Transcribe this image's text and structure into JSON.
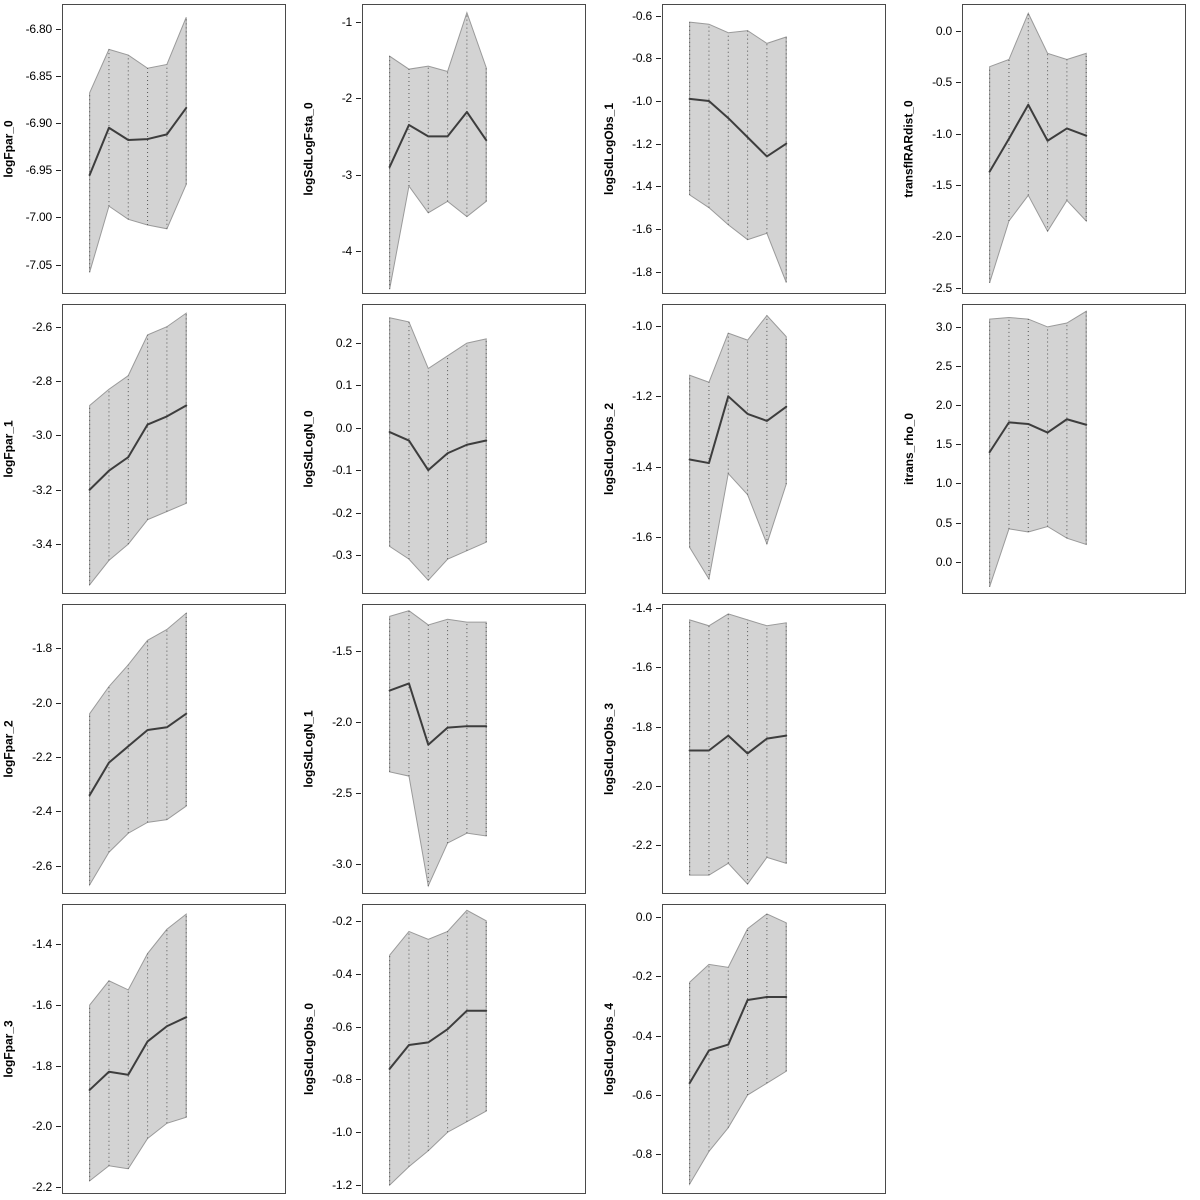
{
  "figure": {
    "background": "#ffffff",
    "panel_border_color": "#4a4a4a",
    "band_fill_color": "#d3d3d3",
    "band_edge_color": "#9a9a9a",
    "line_color": "#3d3d3d",
    "gridline_color": "#555555",
    "tick_text_color": "#000000"
  },
  "chart_data": {
    "type": "line",
    "subtype": "parameter-estimates-with-confidence-bands",
    "layout": {
      "columns": 4,
      "rows": 4,
      "empty_cells": [
        11,
        15
      ],
      "band_x_start_frac": 0.12,
      "band_x_end_frac": 0.555,
      "x_tick_labels_visible": false,
      "legend": "none",
      "grid": "dotted-vertical-ci-segments"
    },
    "x_index": [
      1,
      2,
      3,
      4,
      5,
      6
    ],
    "plots": [
      {
        "name": "logFpar_0",
        "ylim": [
          -7.08,
          -6.775
        ],
        "yticks": [
          "-6.80",
          "-6.85",
          "-6.90",
          "-6.95",
          "-7.00",
          "-7.05"
        ],
        "center": [
          -6.955,
          -6.905,
          -6.918,
          -6.917,
          -6.912,
          -6.884
        ],
        "upper": [
          -6.868,
          -6.822,
          -6.828,
          -6.842,
          -6.838,
          -6.788
        ],
        "lower": [
          -7.058,
          -6.988,
          -7.002,
          -7.008,
          -7.012,
          -6.965
        ]
      },
      {
        "name": "logSdLogFsta_0",
        "ylim": [
          -4.55,
          -0.78
        ],
        "yticks": [
          "-1",
          "-2",
          "-3",
          "-4"
        ],
        "center": [
          -2.9,
          -2.35,
          -2.5,
          -2.5,
          -2.18,
          -2.55
        ],
        "upper": [
          -1.45,
          -1.62,
          -1.58,
          -1.65,
          -0.88,
          -1.6
        ],
        "lower": [
          -4.5,
          -3.15,
          -3.5,
          -3.35,
          -3.55,
          -3.35
        ]
      },
      {
        "name": "logSdLogObs_1",
        "ylim": [
          -1.9,
          -0.55
        ],
        "yticks": [
          "-0.6",
          "-0.8",
          "-1.0",
          "-1.2",
          "-1.4",
          "-1.6",
          "-1.8"
        ],
        "center": [
          -0.99,
          -1.0,
          -1.08,
          -1.17,
          -1.26,
          -1.2
        ],
        "upper": [
          -0.63,
          -0.64,
          -0.68,
          -0.67,
          -0.73,
          -0.7
        ],
        "lower": [
          -1.44,
          -1.5,
          -1.58,
          -1.65,
          -1.62,
          -1.85
        ]
      },
      {
        "name": "transfIRARdist_0",
        "ylim": [
          -2.55,
          0.25
        ],
        "yticks": [
          "0.0",
          "-0.5",
          "-1.0",
          "-1.5",
          "-2.0",
          "-2.5"
        ],
        "center": [
          -1.37,
          -1.05,
          -0.72,
          -1.07,
          -0.95,
          -1.02
        ],
        "upper": [
          -0.35,
          -0.28,
          0.17,
          -0.22,
          -0.28,
          -0.22
        ],
        "lower": [
          -2.45,
          -1.85,
          -1.6,
          -1.95,
          -1.65,
          -1.85
        ]
      },
      {
        "name": "logFpar_1",
        "ylim": [
          -3.58,
          -2.52
        ],
        "yticks": [
          "-2.6",
          "-2.8",
          "-3.0",
          "-3.2",
          "-3.4"
        ],
        "center": [
          -3.2,
          -3.13,
          -3.08,
          -2.96,
          -2.93,
          -2.89
        ],
        "upper": [
          -2.89,
          -2.83,
          -2.78,
          -2.63,
          -2.6,
          -2.55
        ],
        "lower": [
          -3.55,
          -3.46,
          -3.4,
          -3.31,
          -3.28,
          -3.25
        ]
      },
      {
        "name": "logSdLogN_0",
        "ylim": [
          -0.39,
          0.29
        ],
        "yticks": [
          "0.2",
          "0.1",
          "0.0",
          "-0.1",
          "-0.2",
          "-0.3"
        ],
        "center": [
          -0.01,
          -0.03,
          -0.1,
          -0.06,
          -0.04,
          -0.03
        ],
        "upper": [
          0.26,
          0.25,
          0.14,
          0.17,
          0.2,
          0.21
        ],
        "lower": [
          -0.28,
          -0.31,
          -0.36,
          -0.31,
          -0.29,
          -0.27
        ]
      },
      {
        "name": "logSdLogObs_2",
        "ylim": [
          -1.76,
          -0.94
        ],
        "yticks": [
          "-1.0",
          "-1.2",
          "-1.4",
          "-1.6"
        ],
        "center": [
          -1.38,
          -1.39,
          -1.2,
          -1.25,
          -1.27,
          -1.23
        ],
        "upper": [
          -1.14,
          -1.16,
          -1.02,
          -1.04,
          -0.97,
          -1.03
        ],
        "lower": [
          -1.63,
          -1.72,
          -1.42,
          -1.48,
          -1.62,
          -1.45
        ]
      },
      {
        "name": "itrans_rho_0",
        "ylim": [
          -0.4,
          3.28
        ],
        "yticks": [
          "3.0",
          "2.5",
          "2.0",
          "1.5",
          "1.0",
          "0.5",
          "0.0"
        ],
        "center": [
          1.4,
          1.78,
          1.76,
          1.65,
          1.82,
          1.75
        ],
        "upper": [
          3.1,
          3.12,
          3.1,
          3.0,
          3.05,
          3.2
        ],
        "lower": [
          -0.32,
          0.42,
          0.38,
          0.45,
          0.3,
          0.22
        ]
      },
      {
        "name": "logFpar_2",
        "ylim": [
          -2.7,
          -1.64
        ],
        "yticks": [
          "-1.8",
          "-2.0",
          "-2.2",
          "-2.4",
          "-2.6"
        ],
        "center": [
          -2.34,
          -2.22,
          -2.16,
          -2.1,
          -2.09,
          -2.04
        ],
        "upper": [
          -2.04,
          -1.94,
          -1.86,
          -1.77,
          -1.73,
          -1.67
        ],
        "lower": [
          -2.67,
          -2.55,
          -2.48,
          -2.44,
          -2.43,
          -2.38
        ]
      },
      {
        "name": "logSdLogN_1",
        "ylim": [
          -3.2,
          -1.18
        ],
        "yticks": [
          "-1.5",
          "-2.0",
          "-2.5",
          "-3.0"
        ],
        "center": [
          -1.78,
          -1.73,
          -2.16,
          -2.04,
          -2.03,
          -2.03
        ],
        "upper": [
          -1.26,
          -1.22,
          -1.32,
          -1.28,
          -1.3,
          -1.3
        ],
        "lower": [
          -2.35,
          -2.38,
          -3.15,
          -2.85,
          -2.78,
          -2.8
        ]
      },
      {
        "name": "logSdLogObs_3",
        "ylim": [
          -2.36,
          -1.39
        ],
        "yticks": [
          "-1.4",
          "-1.6",
          "-1.8",
          "-2.0",
          "-2.2"
        ],
        "center": [
          -1.88,
          -1.88,
          -1.83,
          -1.89,
          -1.84,
          -1.83
        ],
        "upper": [
          -1.44,
          -1.46,
          -1.42,
          -1.44,
          -1.46,
          -1.45
        ],
        "lower": [
          -2.3,
          -2.3,
          -2.26,
          -2.33,
          -2.24,
          -2.26
        ]
      },
      {
        "name": "logFpar_3",
        "ylim": [
          -2.22,
          -1.27
        ],
        "yticks": [
          "-1.4",
          "-1.6",
          "-1.8",
          "-2.0",
          "-2.2"
        ],
        "center": [
          -1.88,
          -1.82,
          -1.83,
          -1.72,
          -1.67,
          -1.64
        ],
        "upper": [
          -1.6,
          -1.52,
          -1.55,
          -1.43,
          -1.35,
          -1.3
        ],
        "lower": [
          -2.18,
          -2.13,
          -2.14,
          -2.04,
          -1.99,
          -1.97
        ]
      },
      {
        "name": "logSdLogObs_0",
        "ylim": [
          -1.23,
          -0.14
        ],
        "yticks": [
          "-0.2",
          "-0.4",
          "-0.6",
          "-0.8",
          "-1.0",
          "-1.2"
        ],
        "center": [
          -0.76,
          -0.67,
          -0.66,
          -0.61,
          -0.54,
          -0.54
        ],
        "upper": [
          -0.33,
          -0.24,
          -0.27,
          -0.24,
          -0.16,
          -0.2
        ],
        "lower": [
          -1.2,
          -1.13,
          -1.07,
          -1.0,
          -0.96,
          -0.92
        ]
      },
      {
        "name": "logSdLogObs_4",
        "ylim": [
          -0.93,
          0.04
        ],
        "yticks": [
          "0.0",
          "-0.2",
          "-0.4",
          "-0.6",
          "-0.8"
        ],
        "center": [
          -0.56,
          -0.45,
          -0.43,
          -0.28,
          -0.27,
          -0.27
        ],
        "upper": [
          -0.22,
          -0.16,
          -0.17,
          -0.04,
          0.01,
          -0.02
        ],
        "lower": [
          -0.9,
          -0.79,
          -0.71,
          -0.6,
          -0.56,
          -0.52
        ]
      }
    ]
  }
}
